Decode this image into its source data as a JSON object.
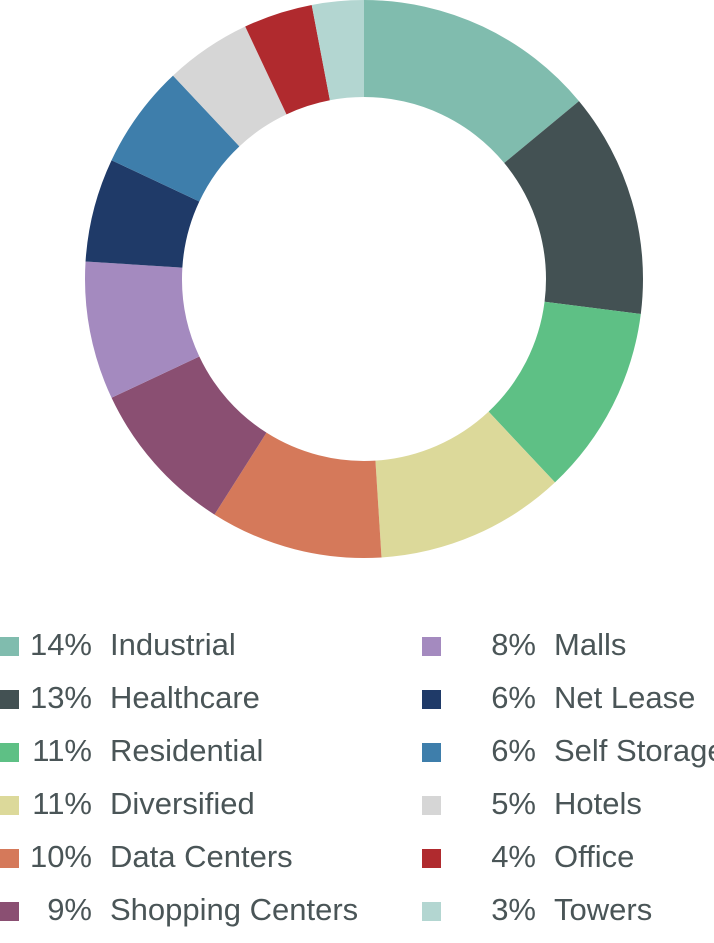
{
  "chart_data": {
    "type": "pie",
    "title": "",
    "donut": true,
    "legend_position": "bottom",
    "slices": [
      {
        "percent_label": "14%",
        "label": "Industrial",
        "value": 14,
        "color": "#80bcae"
      },
      {
        "percent_label": "13%",
        "label": "Healthcare",
        "value": 13,
        "color": "#435153"
      },
      {
        "percent_label": "11%",
        "label": "Residential",
        "value": 11,
        "color": "#5ec085"
      },
      {
        "percent_label": "11%",
        "label": "Diversified",
        "value": 11,
        "color": "#dcd99a"
      },
      {
        "percent_label": "10%",
        "label": "Data Centers",
        "value": 10,
        "color": "#d5795a"
      },
      {
        "percent_label": "9%",
        "label": "Shopping Centers",
        "value": 9,
        "color": "#8a4f72"
      },
      {
        "percent_label": "8%",
        "label": "Malls",
        "value": 8,
        "color": "#a48abf"
      },
      {
        "percent_label": "6%",
        "label": "Net Lease",
        "value": 6,
        "color": "#1f3a68"
      },
      {
        "percent_label": "6%",
        "label": "Self Storage",
        "value": 6,
        "color": "#3e7eab"
      },
      {
        "percent_label": "5%",
        "label": "Hotels",
        "value": 5,
        "color": "#d6d6d6"
      },
      {
        "percent_label": "4%",
        "label": "Office",
        "value": 4,
        "color": "#b02a2e"
      },
      {
        "percent_label": "3%",
        "label": "Towers",
        "value": 3,
        "color": "#b3d6d1"
      }
    ]
  }
}
